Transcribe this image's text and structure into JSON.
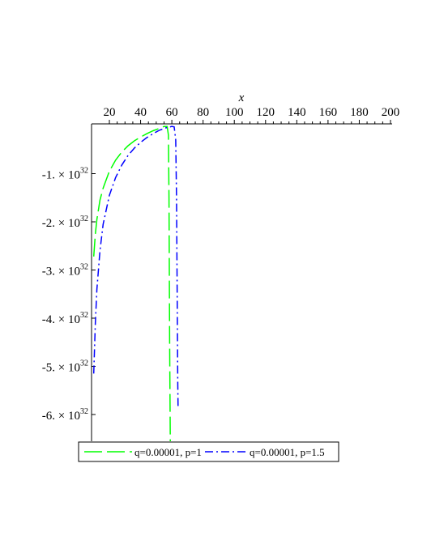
{
  "chart_data": {
    "type": "line",
    "xlabel": "x",
    "ylabel": "",
    "xlim": [
      8,
      200
    ],
    "ylim": [
      -6.87e+32,
      0
    ],
    "x_ticks": [
      20,
      40,
      60,
      80,
      100,
      120,
      140,
      160,
      180,
      200
    ],
    "y_ticks": [
      {
        "value": -1e+32,
        "mantissa": "-1.",
        "times": "×",
        "base": "10",
        "exp": "32"
      },
      {
        "value": -2e+32,
        "mantissa": "-2.",
        "times": "×",
        "base": "10",
        "exp": "32"
      },
      {
        "value": -3e+32,
        "mantissa": "-3.",
        "times": "×",
        "base": "10",
        "exp": "32"
      },
      {
        "value": -4e+32,
        "mantissa": "-4.",
        "times": "×",
        "base": "10",
        "exp": "32"
      },
      {
        "value": -5e+32,
        "mantissa": "-5.",
        "times": "×",
        "base": "10",
        "exp": "32"
      },
      {
        "value": -6e+32,
        "mantissa": "-6.",
        "times": "×",
        "base": "10",
        "exp": "32"
      }
    ],
    "legend_position": "bottom",
    "series": [
      {
        "name": "q=0.00001, p=1",
        "color": "#00ff00",
        "dash": "long-dash",
        "x": [
          10,
          11,
          12,
          14,
          16,
          20,
          24,
          28,
          32,
          36,
          40,
          44,
          48,
          52,
          55,
          57,
          57.8,
          58.2,
          58.6,
          59
        ],
        "y": [
          -2.72e+32,
          -2.25e+32,
          -1.95e+32,
          -1.55e+32,
          -1.3e+32,
          -9.5e+31,
          -7.2e+31,
          -5.5e+31,
          -4.2e+31,
          -3.2e+31,
          -2.4e+31,
          -1.7e+31,
          -1.1e+31,
          -6e+30,
          -2e+30,
          -2e+30,
          -2e+31,
          -1.5e+32,
          -4.5e+32,
          -6.87e+32
        ]
      },
      {
        "name": "q=0.00001, p=1.5",
        "color": "#0000ff",
        "dash": "dash-dot",
        "x": [
          10,
          11,
          12,
          14,
          16,
          20,
          24,
          28,
          32,
          36,
          40,
          44,
          48,
          52,
          56,
          60,
          61.5,
          62.5,
          63,
          63.4,
          63.8,
          64
        ],
        "y": [
          -5.15e+32,
          -4.1e+32,
          -3.4e+32,
          -2.6e+32,
          -2.05e+32,
          -1.45e+32,
          -1.08e+32,
          -8.2e+31,
          -6.2e+31,
          -4.7e+31,
          -3.5e+31,
          -2.5e+31,
          -1.7e+31,
          -1e+31,
          -5e+30,
          -2e+30,
          -3e+30,
          -3e+31,
          -1.5e+32,
          -3.5e+32,
          -5.3e+32,
          -5.85e+32
        ]
      }
    ]
  }
}
